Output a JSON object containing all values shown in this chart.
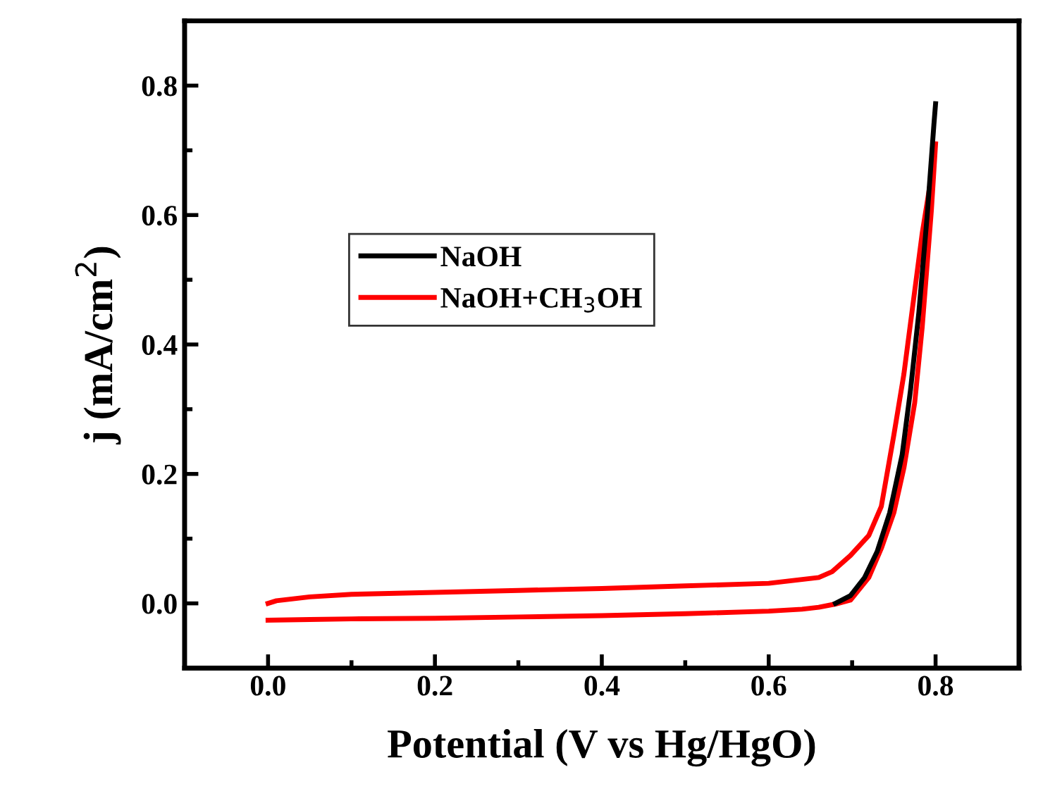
{
  "chart_data": {
    "type": "line",
    "xlabel": "Potential (V vs Hg/HgO)",
    "ylabel": "j (mA/cm$^{2}$)",
    "xlim": [
      -0.1,
      0.9
    ],
    "ylim": [
      -0.1,
      0.9
    ],
    "xticks": [
      {
        "value": 0.0,
        "label": "0.0"
      },
      0.2,
      0.4,
      0.6,
      0.8
    ],
    "yticks": [
      {
        "value": 0.0,
        "label": "0.0"
      },
      0.2,
      0.4,
      0.6,
      0.8
    ],
    "grid": false,
    "legend": "center",
    "marker": "none",
    "line_style": "solid",
    "series": [
      {
        "name": "NaOH",
        "color": "#000000",
        "x": [
          0.68,
          0.698,
          0.715,
          0.73,
          0.745,
          0.76,
          0.77,
          0.78,
          0.79,
          0.798,
          0.8
        ],
        "values": [
          0.0,
          0.012,
          0.04,
          0.08,
          0.14,
          0.23,
          0.33,
          0.45,
          0.6,
          0.74,
          0.772
        ]
      },
      {
        "name": "NaOH+CH$_{3}$OH",
        "color": "#ff0000",
        "x": [
          0,
          0.05,
          0.1,
          0.2,
          0.3,
          0.4,
          0.5,
          0.6,
          0.64,
          0.66,
          0.68,
          0.698,
          0.72,
          0.735,
          0.75,
          0.762,
          0.775,
          0.784,
          0.795,
          0.8
        ],
        "values": [
          -0.026,
          -0.025,
          -0.024,
          -0.023,
          -0.021,
          -0.019,
          -0.016,
          -0.012,
          -0.009,
          -0.006,
          -0.001,
          0.005,
          0.04,
          0.085,
          0.14,
          0.209,
          0.31,
          0.427,
          0.608,
          0.71
        ]
      },
      {
        "color": "#ff0000",
        "x": [
          0.0,
          0.01,
          0.05,
          0.1,
          0.2,
          0.3,
          0.4,
          0.5,
          0.6,
          0.66,
          0.676,
          0.698,
          0.72,
          0.735,
          0.75,
          0.762,
          0.773,
          0.784,
          0.795
        ],
        "values": [
          0.0,
          0.004,
          0.01,
          0.014,
          0.017,
          0.02,
          0.023,
          0.027,
          0.031,
          0.04,
          0.049,
          0.074,
          0.105,
          0.15,
          0.26,
          0.354,
          0.463,
          0.572,
          0.66
        ]
      }
    ]
  }
}
